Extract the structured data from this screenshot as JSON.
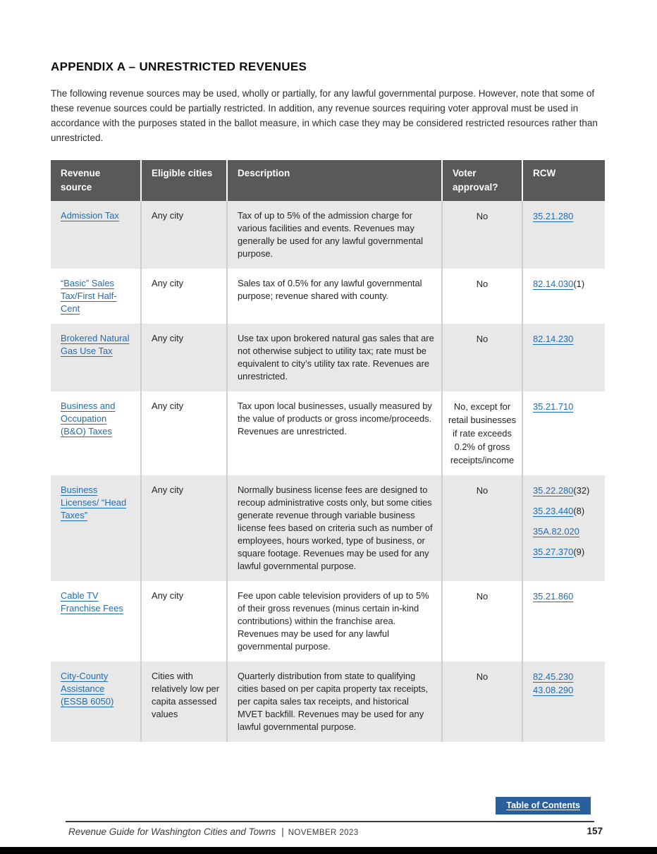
{
  "page": {
    "title": "APPENDIX A – UNRESTRICTED REVENUES",
    "intro": "The following revenue sources may be used, wholly or partially, for any lawful governmental purpose. However, note that some of these revenue sources could be partially restricted. In addition, any revenue sources requiring voter approval must be used in accordance with the purposes stated in the ballot measure, in which case they may be considered restricted resources rather than unrestricted."
  },
  "colors": {
    "table_header_bg": "#58595b",
    "row_shade": "#e8e8e9",
    "link_blue": "#1f6cb5",
    "toc_button_bg": "#2a5f9e"
  },
  "table": {
    "headers": [
      "Revenue source",
      "Eligible cities",
      "Description",
      "Voter approval?",
      "RCW"
    ],
    "rows": [
      {
        "source": "Admission Tax",
        "eligible": "Any city",
        "description": "Tax of up to 5% of the admission charge for various facilities and events. Revenues may generally be used for any lawful governmental purpose.",
        "voter": "No",
        "rcw": [
          {
            "link": "35.21.280",
            "suffix": ""
          }
        ]
      },
      {
        "source": "“Basic” Sales Tax/First Half-Cent",
        "eligible": "Any city",
        "description": "Sales tax of 0.5% for any lawful governmental purpose; revenue shared with county.",
        "voter": "No",
        "rcw": [
          {
            "link": "82.14.030",
            "suffix": "(1)"
          }
        ]
      },
      {
        "source": "Brokered Natural Gas Use Tax",
        "eligible": "Any city",
        "description": "Use tax upon brokered natural gas sales that are not otherwise subject to utility tax; rate must be equivalent to city’s utility tax rate. Revenues are unrestricted.",
        "voter": "No",
        "rcw": [
          {
            "link": "82.14.230",
            "suffix": ""
          }
        ]
      },
      {
        "source": "Business and Occupation (B&O) Taxes",
        "eligible": "Any city",
        "description": "Tax upon local businesses, usually measured by the value of products or gross income/proceeds. Revenues are unrestricted.",
        "voter": "No, except for retail businesses if rate exceeds 0.2% of gross receipts/income",
        "rcw": [
          {
            "link": "35.21.710",
            "suffix": ""
          }
        ]
      },
      {
        "source": "Business Licenses/ “Head Taxes”",
        "eligible": "Any city",
        "description": "Normally business license fees are designed to recoup administrative costs only, but some cities generate revenue through variable business license fees based on criteria such as number of employees, hours worked, type of business, or square footage. Revenues may be used for any lawful governmental purpose.",
        "voter": "No",
        "rcw": [
          {
            "link": "35.22.280",
            "suffix": "(32)"
          },
          {
            "link": "35.23.440",
            "suffix": "(8)"
          },
          {
            "link": "35A.82.020",
            "suffix": ""
          },
          {
            "link": "35.27.370",
            "suffix": "(9)"
          }
        ]
      },
      {
        "source": "Cable TV Franchise Fees",
        "eligible": "Any city",
        "description": "Fee upon cable television providers of up to 5% of their gross revenues (minus certain in-kind contributions) within the franchise area. Revenues may be used for any lawful governmental purpose.",
        "voter": "No",
        "rcw": [
          {
            "link": "35.21.860",
            "suffix": ""
          }
        ]
      },
      {
        "source": "City-County Assistance (ESSB 6050)",
        "eligible": "Cities with relatively low per capita assessed values",
        "description": "Quarterly distribution from state to qualifying cities based on per capita property tax receipts, per capita sales tax receipts, and historical MVET backfill. Revenues may be used for any lawful governmental purpose.",
        "voter": "No",
        "rcw": [
          {
            "link": "82.45.230",
            "suffix": ""
          },
          {
            "link": "43.08.290",
            "suffix": ""
          }
        ]
      }
    ]
  },
  "footer": {
    "toc_label": "Table of Contents",
    "doc_title": "Revenue Guide for Washington Cities and Towns",
    "separator": "|",
    "date": "NOVEMBER 2023",
    "page_number": "157"
  }
}
